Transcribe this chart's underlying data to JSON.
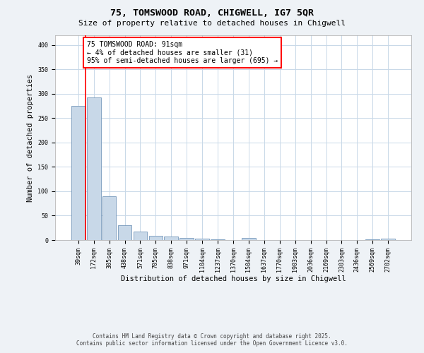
{
  "title1": "75, TOMSWOOD ROAD, CHIGWELL, IG7 5QR",
  "title2": "Size of property relative to detached houses in Chigwell",
  "xlabel": "Distribution of detached houses by size in Chigwell",
  "ylabel": "Number of detached properties",
  "bin_labels": [
    "39sqm",
    "172sqm",
    "305sqm",
    "438sqm",
    "571sqm",
    "705sqm",
    "838sqm",
    "971sqm",
    "1104sqm",
    "1237sqm",
    "1370sqm",
    "1504sqm",
    "1637sqm",
    "1770sqm",
    "1903sqm",
    "2036sqm",
    "2169sqm",
    "2303sqm",
    "2436sqm",
    "2569sqm",
    "2702sqm"
  ],
  "bar_heights": [
    275,
    293,
    90,
    31,
    17,
    9,
    7,
    5,
    3,
    2,
    0,
    5,
    0,
    0,
    0,
    0,
    0,
    0,
    0,
    2,
    3
  ],
  "bar_color": "#c8d8e8",
  "bar_edge_color": "#7799bb",
  "annotation_text": "75 TOMSWOOD ROAD: 91sqm\n← 4% of detached houses are smaller (31)\n95% of semi-detached houses are larger (695) →",
  "annotation_box_color": "white",
  "annotation_box_edge_color": "red",
  "red_line_color": "red",
  "ylim": [
    0,
    420
  ],
  "yticks": [
    0,
    50,
    100,
    150,
    200,
    250,
    300,
    350,
    400
  ],
  "footer1": "Contains HM Land Registry data © Crown copyright and database right 2025.",
  "footer2": "Contains public sector information licensed under the Open Government Licence v3.0.",
  "bg_color": "#eef2f6",
  "plot_bg_color": "white",
  "grid_color": "#c8d8e8",
  "title1_fontsize": 9.5,
  "title2_fontsize": 8,
  "xlabel_fontsize": 7.5,
  "ylabel_fontsize": 7.5,
  "tick_fontsize": 6,
  "footer_fontsize": 5.5,
  "annot_fontsize": 7,
  "red_line_x": 0.48
}
